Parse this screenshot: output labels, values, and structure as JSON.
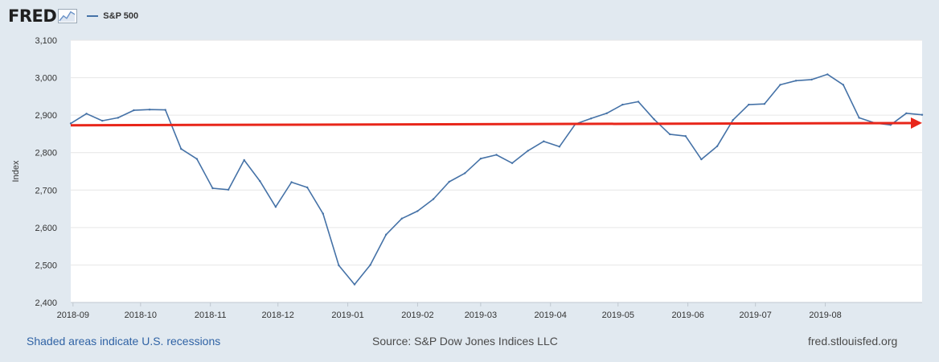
{
  "header": {
    "logo_text": "FRED",
    "logo_icon": "line-chart-icon"
  },
  "chart_data": {
    "type": "line",
    "ylabel": "Index",
    "ylim": [
      2400,
      3100
    ],
    "yticks": [
      "2,400",
      "2,500",
      "2,600",
      "2,700",
      "2,800",
      "2,900",
      "3,000",
      "3,100"
    ],
    "xticks": [
      "2018-09",
      "2018-10",
      "2018-11",
      "2018-12",
      "2019-01",
      "2019-02",
      "2019-03",
      "2019-04",
      "2019-05",
      "2019-06",
      "2019-07",
      "2019-08"
    ],
    "grid": true,
    "legend_position": "top-left",
    "series": [
      {
        "name": "S&P 500",
        "color": "#4572a7",
        "x": [
          "2018-08-31",
          "2018-09-07",
          "2018-09-14",
          "2018-09-21",
          "2018-09-28",
          "2018-10-05",
          "2018-10-12",
          "2018-10-19",
          "2018-10-26",
          "2018-11-02",
          "2018-11-09",
          "2018-11-16",
          "2018-11-23",
          "2018-11-30",
          "2018-12-07",
          "2018-12-14",
          "2018-12-21",
          "2018-12-28",
          "2019-01-04",
          "2019-01-11",
          "2019-01-18",
          "2019-01-25",
          "2019-02-01",
          "2019-02-08",
          "2019-02-15",
          "2019-02-22",
          "2019-03-01",
          "2019-03-08",
          "2019-03-15",
          "2019-03-22",
          "2019-03-29",
          "2019-04-05",
          "2019-04-12",
          "2019-04-19",
          "2019-04-26",
          "2019-05-03",
          "2019-05-10",
          "2019-05-17",
          "2019-05-24",
          "2019-05-31",
          "2019-06-07",
          "2019-06-14",
          "2019-06-21",
          "2019-06-28",
          "2019-07-05",
          "2019-07-12",
          "2019-07-19",
          "2019-07-26",
          "2019-08-02",
          "2019-08-09",
          "2019-08-16",
          "2019-08-23",
          "2019-08-30",
          "2019-09-06",
          "2019-09-13"
        ],
        "values": [
          2878,
          2904,
          2885,
          2893,
          2913,
          2915,
          2914,
          2810,
          2783,
          2705,
          2701,
          2780,
          2724,
          2655,
          2721,
          2707,
          2637,
          2499,
          2448,
          2500,
          2581,
          2624,
          2644,
          2676,
          2722,
          2745,
          2784,
          2794,
          2772,
          2805,
          2830,
          2816,
          2876,
          2891,
          2905,
          2928,
          2936,
          2889,
          2849,
          2844,
          2782,
          2817,
          2887,
          2928,
          2930,
          2981,
          2992,
          2995,
          3009,
          2981,
          2893,
          2879,
          2874,
          2905,
          2901
        ]
      }
    ],
    "annotation": {
      "type": "arrow",
      "color": "#e8261a",
      "x_start": "2018-08-31",
      "y_start": 2873,
      "x_end": "2019-09-13",
      "y_end": 2879
    }
  },
  "footer": {
    "note": "Shaded areas indicate U.S. recessions",
    "source": "Source: S&P Dow Jones Indices LLC",
    "site": "fred.stlouisfed.org"
  }
}
